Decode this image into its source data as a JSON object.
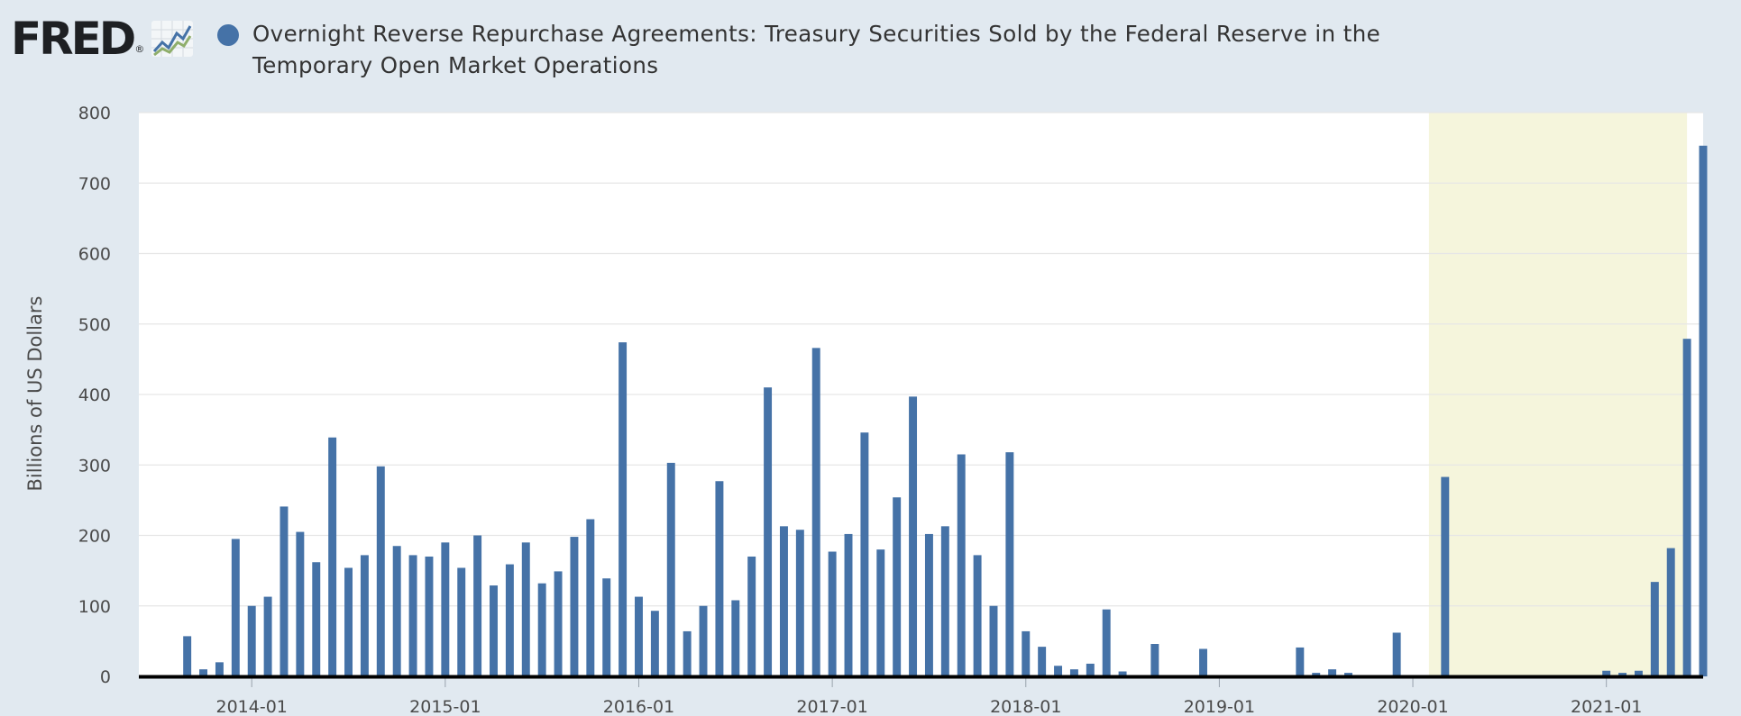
{
  "header": {
    "logo_text": "FRED",
    "logo_icon": "trend-graph-icon",
    "title": "Overnight Reverse Repurchase Agreements: Treasury Securities Sold by the Federal Reserve in the Temporary Open Market Operations"
  },
  "chart_data": {
    "type": "bar",
    "title": "Overnight Reverse Repurchase Agreements: Treasury Securities Sold by the Federal Reserve in the Temporary Open Market Operations",
    "xlabel": "",
    "ylabel": "Billions of US Dollars",
    "ylim": [
      0,
      800
    ],
    "yticks": [
      0,
      100,
      200,
      300,
      400,
      500,
      600,
      700,
      800
    ],
    "xticks": [
      "2014-01",
      "2015-01",
      "2016-01",
      "2017-01",
      "2018-01",
      "2019-01",
      "2020-01",
      "2021-01"
    ],
    "xlim": [
      "2013-06",
      "2021-07"
    ],
    "grid": true,
    "bar_color": "#4572a7",
    "recession_shading": {
      "start": "2020-02",
      "end": "2021-06",
      "color": "#f5f5dc"
    },
    "series": [
      {
        "x": [
          "2013-09",
          "2013-10",
          "2013-11",
          "2013-12",
          "2014-01",
          "2014-02",
          "2014-03",
          "2014-04",
          "2014-05",
          "2014-06",
          "2014-07",
          "2014-08",
          "2014-09",
          "2014-10",
          "2014-11",
          "2014-12",
          "2015-01",
          "2015-02",
          "2015-03",
          "2015-04",
          "2015-05",
          "2015-06",
          "2015-07",
          "2015-08",
          "2015-09",
          "2015-10",
          "2015-11",
          "2015-12",
          "2016-01",
          "2016-02",
          "2016-03",
          "2016-04",
          "2016-05",
          "2016-06",
          "2016-07",
          "2016-08",
          "2016-09",
          "2016-10",
          "2016-11",
          "2016-12",
          "2017-01",
          "2017-02",
          "2017-03",
          "2017-04",
          "2017-05",
          "2017-06",
          "2017-07",
          "2017-08",
          "2017-09",
          "2017-10",
          "2017-11",
          "2017-12",
          "2018-01",
          "2018-02",
          "2018-03",
          "2018-04",
          "2018-05",
          "2018-06",
          "2018-07",
          "2018-09",
          "2018-12",
          "2019-06",
          "2019-07",
          "2019-08",
          "2019-09",
          "2019-12",
          "2020-03",
          "2021-01",
          "2021-02",
          "2021-03",
          "2021-04",
          "2021-05",
          "2021-06",
          "2021-07"
        ],
        "values": [
          57,
          10,
          20,
          195,
          100,
          113,
          241,
          205,
          162,
          339,
          154,
          172,
          298,
          185,
          172,
          170,
          190,
          154,
          200,
          129,
          159,
          190,
          132,
          149,
          198,
          223,
          139,
          474,
          113,
          93,
          303,
          64,
          100,
          277,
          108,
          170,
          410,
          213,
          208,
          466,
          177,
          202,
          346,
          180,
          254,
          397,
          202,
          213,
          315,
          172,
          100,
          318,
          64,
          42,
          15,
          10,
          18,
          95,
          7,
          46,
          39,
          41,
          5,
          10,
          5,
          62,
          283,
          8,
          5,
          8,
          134,
          182,
          479,
          753
        ]
      }
    ]
  }
}
